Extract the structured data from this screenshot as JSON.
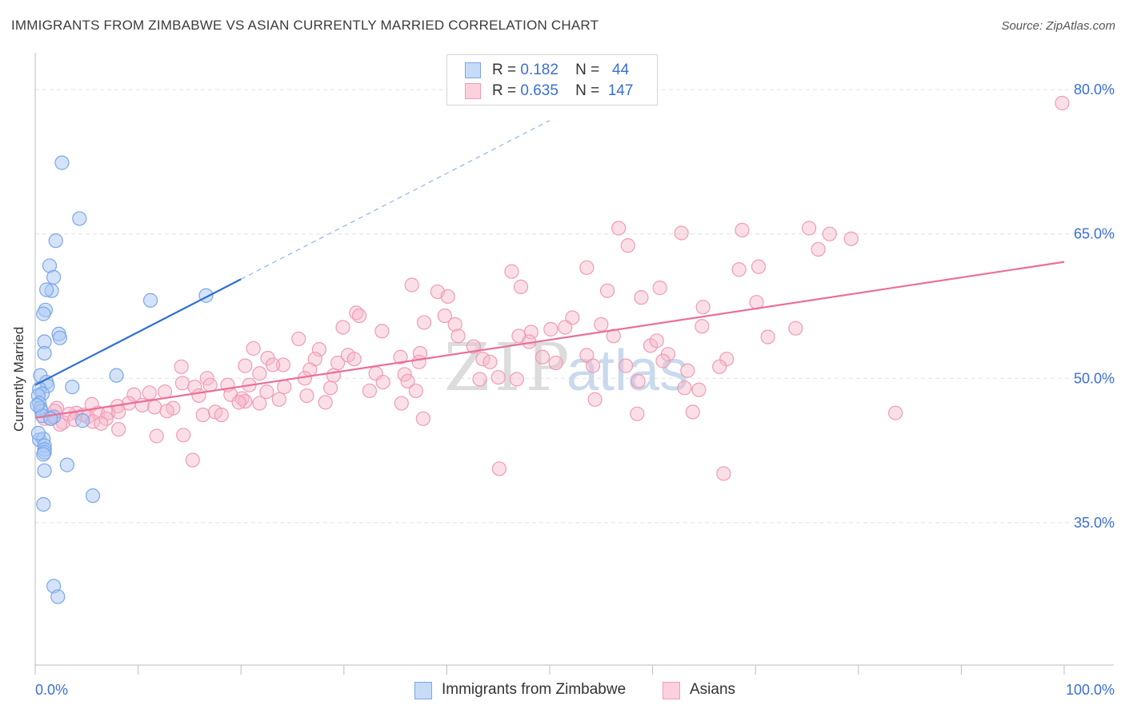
{
  "header": {
    "title": "IMMIGRANTS FROM ZIMBABWE VS ASIAN CURRENTLY MARRIED CORRELATION CHART",
    "source": "Source: ZipAtlas.com"
  },
  "legend_top": {
    "rows": [
      {
        "r_label": "R =",
        "r_value": "0.182",
        "n_label": "N =",
        "n_value": "44",
        "color": "#a9c8f5"
      },
      {
        "r_label": "R =",
        "r_value": "0.635",
        "n_label": "N =",
        "n_value": "147",
        "color": "#f7b8ca"
      }
    ]
  },
  "legend_bottom": {
    "items": [
      {
        "label": "Immigrants from Zimbabwe",
        "color": "#a9c8f5"
      },
      {
        "label": "Asians",
        "color": "#f7b8ca"
      }
    ]
  },
  "watermark": {
    "zip": "ZIP",
    "atlas": "atlas"
  },
  "chart_data": {
    "type": "scatter",
    "ylabel": "Currently Married",
    "x_tick_labels": [
      "0.0%",
      "100.0%"
    ],
    "y_tick_labels": [
      "80.0%",
      "65.0%",
      "50.0%",
      "35.0%"
    ],
    "xlim": [
      0,
      100
    ],
    "ylim": [
      20.2,
      83.5
    ],
    "y_gridlines": [
      80,
      65,
      50,
      35
    ],
    "grid": true,
    "colors": {
      "zimbabwe": "#7aa6e8",
      "zimbabwe_line": "#2e6fd0",
      "asians": "#f09bb6",
      "asians_line": "#e8709a"
    },
    "series": [
      {
        "name": "Immigrants from Zimbabwe",
        "points": [
          [
            2.6,
            72.4
          ],
          [
            4.3,
            66.6
          ],
          [
            2.0,
            64.3
          ],
          [
            1.4,
            61.7
          ],
          [
            1.8,
            60.5
          ],
          [
            1.6,
            59.1
          ],
          [
            1.1,
            59.2
          ],
          [
            1.0,
            57.1
          ],
          [
            0.8,
            56.7
          ],
          [
            2.3,
            54.6
          ],
          [
            2.4,
            54.2
          ],
          [
            0.9,
            53.8
          ],
          [
            0.9,
            52.6
          ],
          [
            0.5,
            50.3
          ],
          [
            1.1,
            49.6
          ],
          [
            1.2,
            49.2
          ],
          [
            0.4,
            48.9
          ],
          [
            0.7,
            48.4
          ],
          [
            0.3,
            48.2
          ],
          [
            0.4,
            47.4
          ],
          [
            0.5,
            46.9
          ],
          [
            0.6,
            46.6
          ],
          [
            0.7,
            46.1
          ],
          [
            0.4,
            43.6
          ],
          [
            0.8,
            43.7
          ],
          [
            0.9,
            43.0
          ],
          [
            0.9,
            42.6
          ],
          [
            0.9,
            42.3
          ],
          [
            0.8,
            42.1
          ],
          [
            0.9,
            40.4
          ],
          [
            3.1,
            41.0
          ],
          [
            0.8,
            36.9
          ],
          [
            5.6,
            37.8
          ],
          [
            1.8,
            28.4
          ],
          [
            2.2,
            27.3
          ],
          [
            11.2,
            58.1
          ],
          [
            16.6,
            58.6
          ],
          [
            7.9,
            50.3
          ],
          [
            3.6,
            49.1
          ],
          [
            4.6,
            45.6
          ],
          [
            1.8,
            46.0
          ],
          [
            1.5,
            45.8
          ],
          [
            0.2,
            47.2
          ],
          [
            0.3,
            44.3
          ]
        ],
        "trend": {
          "x": [
            0.0,
            20.0
          ],
          "y": [
            49.3,
            60.3
          ]
        },
        "trend_extension": {
          "x": [
            20.0,
            50.0
          ],
          "y": [
            60.3,
            76.8
          ]
        }
      },
      {
        "name": "Asians",
        "points": [
          [
            99.8,
            78.6
          ],
          [
            56.7,
            65.6
          ],
          [
            62.8,
            65.1
          ],
          [
            68.7,
            65.4
          ],
          [
            75.2,
            65.6
          ],
          [
            77.2,
            65.0
          ],
          [
            79.3,
            64.5
          ],
          [
            57.6,
            63.8
          ],
          [
            76.1,
            63.4
          ],
          [
            53.6,
            61.5
          ],
          [
            68.4,
            61.3
          ],
          [
            70.3,
            61.6
          ],
          [
            46.3,
            61.1
          ],
          [
            36.6,
            59.7
          ],
          [
            39.1,
            59.0
          ],
          [
            40.1,
            58.5
          ],
          [
            47.2,
            59.5
          ],
          [
            55.6,
            59.1
          ],
          [
            60.7,
            59.4
          ],
          [
            58.9,
            58.4
          ],
          [
            31.2,
            56.8
          ],
          [
            31.5,
            56.5
          ],
          [
            39.8,
            56.5
          ],
          [
            52.2,
            56.3
          ],
          [
            37.8,
            55.8
          ],
          [
            40.8,
            55.6
          ],
          [
            55.0,
            55.6
          ],
          [
            64.9,
            57.4
          ],
          [
            70.1,
            57.9
          ],
          [
            29.9,
            55.3
          ],
          [
            33.7,
            54.9
          ],
          [
            48.2,
            54.8
          ],
          [
            50.1,
            55.1
          ],
          [
            51.5,
            55.3
          ],
          [
            64.8,
            55.4
          ],
          [
            73.9,
            55.2
          ],
          [
            25.6,
            54.1
          ],
          [
            41.1,
            54.4
          ],
          [
            47.0,
            54.4
          ],
          [
            56.2,
            54.4
          ],
          [
            71.2,
            54.3
          ],
          [
            21.2,
            53.1
          ],
          [
            27.6,
            53.0
          ],
          [
            37.4,
            52.6
          ],
          [
            42.6,
            53.3
          ],
          [
            48.0,
            53.8
          ],
          [
            49.3,
            52.2
          ],
          [
            53.6,
            52.4
          ],
          [
            59.8,
            53.4
          ],
          [
            60.4,
            53.9
          ],
          [
            61.5,
            52.5
          ],
          [
            67.2,
            52.0
          ],
          [
            22.6,
            52.1
          ],
          [
            24.1,
            51.4
          ],
          [
            27.2,
            52.0
          ],
          [
            29.4,
            51.6
          ],
          [
            30.4,
            52.4
          ],
          [
            31.0,
            52.0
          ],
          [
            35.5,
            52.2
          ],
          [
            37.3,
            51.7
          ],
          [
            43.5,
            52.0
          ],
          [
            44.2,
            51.7
          ],
          [
            50.6,
            51.6
          ],
          [
            54.2,
            51.3
          ],
          [
            57.4,
            51.3
          ],
          [
            61.0,
            51.8
          ],
          [
            63.4,
            50.8
          ],
          [
            66.5,
            51.2
          ],
          [
            14.2,
            51.2
          ],
          [
            20.4,
            51.3
          ],
          [
            23.1,
            51.4
          ],
          [
            26.7,
            50.9
          ],
          [
            29.0,
            50.3
          ],
          [
            33.1,
            50.5
          ],
          [
            35.9,
            50.4
          ],
          [
            45.0,
            50.1
          ],
          [
            21.8,
            50.5
          ],
          [
            26.2,
            50.0
          ],
          [
            16.7,
            50.0
          ],
          [
            14.3,
            49.5
          ],
          [
            11.1,
            48.5
          ],
          [
            15.5,
            49.1
          ],
          [
            17.0,
            49.3
          ],
          [
            18.7,
            49.3
          ],
          [
            20.8,
            49.3
          ],
          [
            22.5,
            48.6
          ],
          [
            24.2,
            49.1
          ],
          [
            28.7,
            49.0
          ],
          [
            33.8,
            49.6
          ],
          [
            36.2,
            49.7
          ],
          [
            43.2,
            49.9
          ],
          [
            46.8,
            49.9
          ],
          [
            58.6,
            49.7
          ],
          [
            64.5,
            48.8
          ],
          [
            9.6,
            48.3
          ],
          [
            12.6,
            48.6
          ],
          [
            15.9,
            48.2
          ],
          [
            19.0,
            48.3
          ],
          [
            20.1,
            47.9
          ],
          [
            20.4,
            47.6
          ],
          [
            23.7,
            47.8
          ],
          [
            26.4,
            48.2
          ],
          [
            32.5,
            48.7
          ],
          [
            37.0,
            48.7
          ],
          [
            54.4,
            47.8
          ],
          [
            63.1,
            49.0
          ],
          [
            5.5,
            47.3
          ],
          [
            8.0,
            47.1
          ],
          [
            9.1,
            47.4
          ],
          [
            10.4,
            47.2
          ],
          [
            11.6,
            47.0
          ],
          [
            13.4,
            46.9
          ],
          [
            19.8,
            47.5
          ],
          [
            21.8,
            47.4
          ],
          [
            28.2,
            47.5
          ],
          [
            35.6,
            47.4
          ],
          [
            2.1,
            46.9
          ],
          [
            4.0,
            46.4
          ],
          [
            6.1,
            46.4
          ],
          [
            7.1,
            46.4
          ],
          [
            12.8,
            46.6
          ],
          [
            16.3,
            46.2
          ],
          [
            17.5,
            46.5
          ],
          [
            18.1,
            46.2
          ],
          [
            63.9,
            46.5
          ],
          [
            83.6,
            46.4
          ],
          [
            58.5,
            46.3
          ],
          [
            1.9,
            46.6
          ],
          [
            3.3,
            46.3
          ],
          [
            4.7,
            46.2
          ],
          [
            5.1,
            46.0
          ],
          [
            6.9,
            45.8
          ],
          [
            8.1,
            46.5
          ],
          [
            0.9,
            45.8
          ],
          [
            1.5,
            45.9
          ],
          [
            2.7,
            45.4
          ],
          [
            3.8,
            45.7
          ],
          [
            5.6,
            45.5
          ],
          [
            6.4,
            45.3
          ],
          [
            2.4,
            45.2
          ],
          [
            11.8,
            44.0
          ],
          [
            37.7,
            45.8
          ],
          [
            8.1,
            44.7
          ],
          [
            14.4,
            44.1
          ],
          [
            15.3,
            41.5
          ],
          [
            45.1,
            40.6
          ],
          [
            66.9,
            40.1
          ]
        ],
        "trend": {
          "x": [
            0.0,
            100.0
          ],
          "y": [
            45.9,
            62.1
          ]
        }
      }
    ]
  }
}
